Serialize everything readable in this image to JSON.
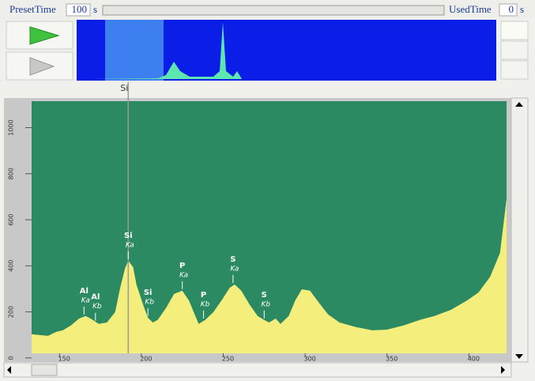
{
  "toolbar": {
    "preset_label": "PresetTime",
    "preset_value": "100",
    "preset_unit": "s",
    "used_label": "UsedTime",
    "used_value": "0",
    "used_unit": "s"
  },
  "chart_data": {
    "type": "area",
    "color": "#f4ee7c",
    "background": "#2b8a62",
    "x": [
      133,
      143,
      148,
      152,
      157,
      162,
      166,
      169,
      174,
      179,
      184,
      187,
      190,
      192,
      195,
      197,
      201,
      204,
      207,
      210,
      215,
      220,
      225,
      229,
      233,
      235,
      239,
      244,
      249,
      254,
      257,
      261,
      266,
      271,
      275,
      278,
      282,
      285,
      290,
      294,
      298,
      303,
      308,
      314,
      321,
      331,
      341,
      350,
      360,
      370,
      379,
      389,
      399,
      406,
      413,
      419,
      423
    ],
    "values": [
      103,
      96,
      113,
      120,
      141,
      171,
      182,
      171,
      148,
      154,
      199,
      302,
      388,
      422,
      394,
      319,
      233,
      175,
      154,
      165,
      216,
      278,
      292,
      250,
      182,
      148,
      165,
      199,
      250,
      305,
      319,
      292,
      233,
      182,
      165,
      154,
      171,
      148,
      182,
      250,
      298,
      292,
      244,
      189,
      154,
      134,
      120,
      123,
      141,
      165,
      182,
      209,
      250,
      285,
      353,
      456,
      690
    ],
    "xlim": [
      133,
      423
    ],
    "ylim": [
      20,
      1115
    ],
    "xticks": [
      150,
      200,
      250,
      300,
      350,
      400
    ],
    "yticks": [
      0,
      200,
      400,
      600,
      800,
      1000
    ],
    "cursor": {
      "label": "Si",
      "x": 192
    },
    "annotations": [
      {
        "element": "Al",
        "line": "Ka",
        "x": 165,
        "y": 182
      },
      {
        "element": "Al",
        "line": "Kb",
        "x": 172,
        "y": 155
      },
      {
        "element": "Si",
        "line": "Ka",
        "x": 192,
        "y": 422
      },
      {
        "element": "Si",
        "line": "Kb",
        "x": 204,
        "y": 175
      },
      {
        "element": "P",
        "line": "Ka",
        "x": 225,
        "y": 292
      },
      {
        "element": "P",
        "line": "Kb",
        "x": 238,
        "y": 165
      },
      {
        "element": "S",
        "line": "Ka",
        "x": 256,
        "y": 319
      },
      {
        "element": "S",
        "line": "Kb",
        "x": 275,
        "y": 165
      }
    ]
  }
}
